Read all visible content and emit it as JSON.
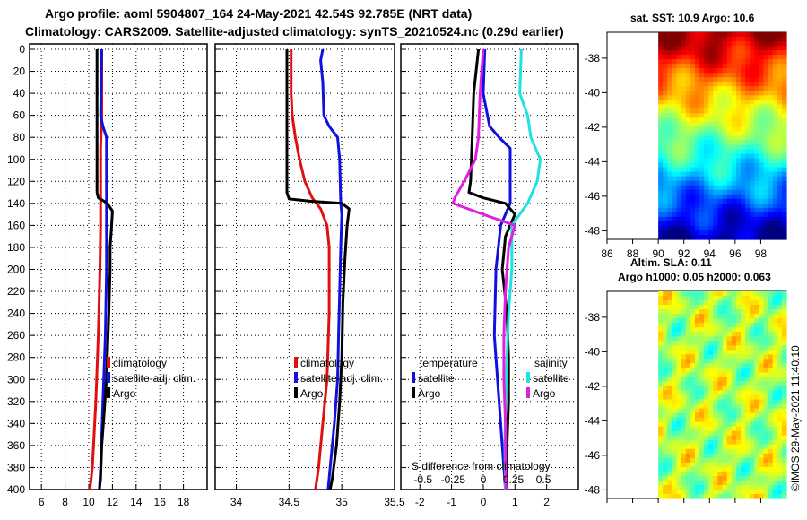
{
  "header": {
    "line1": "Argo profile: aoml 5904807_164 24-May-2021 42.54S 92.785E (NRT data)",
    "line2": "Climatology: CARS2009. Satellite-adjusted climatology: synTS_20210524.nc (0.29d earlier)"
  },
  "depth_ticks": [
    0,
    20,
    40,
    60,
    80,
    100,
    120,
    140,
    160,
    180,
    200,
    220,
    240,
    260,
    280,
    300,
    320,
    340,
    360,
    380,
    400
  ],
  "colors": {
    "climatology": "#e01010",
    "satellite": "#1010e0",
    "argo": "#000000",
    "sat_salinity": "#20e0e0",
    "argo_salinity": "#e020e0"
  },
  "chart_data": [
    {
      "type": "line",
      "name": "temperature",
      "xlim": [
        5,
        20
      ],
      "ylim": [
        0,
        400
      ],
      "x_ticks": [
        6,
        8,
        10,
        12,
        14,
        16,
        18
      ],
      "legend": [
        "climatology",
        "satellite-adj. clim.",
        "Argo"
      ],
      "series": [
        {
          "name": "climatology",
          "color": "#e01010",
          "points": [
            [
              11.1,
              0
            ],
            [
              11.1,
              60
            ],
            [
              11.0,
              90
            ],
            [
              11.0,
              140
            ],
            [
              11.0,
              160
            ],
            [
              10.95,
              200
            ],
            [
              10.8,
              260
            ],
            [
              10.6,
              320
            ],
            [
              10.3,
              380
            ],
            [
              10.1,
              400
            ]
          ]
        },
        {
          "name": "satellite-adj. clim.",
          "color": "#1010e0",
          "points": [
            [
              11.1,
              0
            ],
            [
              11.0,
              60
            ],
            [
              11.2,
              70
            ],
            [
              11.5,
              80
            ],
            [
              11.5,
              140
            ],
            [
              11.5,
              160
            ],
            [
              11.5,
              200
            ],
            [
              11.4,
              260
            ],
            [
              11.2,
              320
            ],
            [
              11.0,
              380
            ],
            [
              10.9,
              400
            ]
          ]
        },
        {
          "name": "Argo",
          "color": "#000000",
          "points": [
            [
              10.7,
              0
            ],
            [
              10.7,
              130
            ],
            [
              10.8,
              135
            ],
            [
              11.3,
              138
            ],
            [
              11.7,
              142
            ],
            [
              12.0,
              147
            ],
            [
              11.9,
              165
            ],
            [
              11.8,
              180
            ],
            [
              11.8,
              200
            ],
            [
              11.7,
              240
            ],
            [
              11.6,
              270
            ],
            [
              11.5,
              300
            ],
            [
              11.3,
              330
            ],
            [
              11.1,
              360
            ],
            [
              11.0,
              390
            ],
            [
              10.9,
              400
            ]
          ]
        }
      ]
    },
    {
      "type": "line",
      "name": "salinity",
      "xlim": [
        33.8,
        35.5
      ],
      "ylim": [
        0,
        400
      ],
      "x_ticks": [
        34,
        34.5,
        35,
        35.5
      ],
      "legend": [
        "climatology",
        "satellite-adj. clim.",
        "Argo"
      ],
      "series": [
        {
          "name": "climatology",
          "color": "#e01010",
          "points": [
            [
              34.52,
              0
            ],
            [
              34.52,
              40
            ],
            [
              34.53,
              60
            ],
            [
              34.56,
              80
            ],
            [
              34.6,
              100
            ],
            [
              34.65,
              120
            ],
            [
              34.72,
              135
            ],
            [
              34.8,
              145
            ],
            [
              34.86,
              160
            ],
            [
              34.88,
              180
            ],
            [
              34.88,
              240
            ],
            [
              34.86,
              300
            ],
            [
              34.82,
              340
            ],
            [
              34.78,
              380
            ],
            [
              34.75,
              400
            ]
          ]
        },
        {
          "name": "satellite-adj. clim.",
          "color": "#1010e0",
          "points": [
            [
              34.82,
              0
            ],
            [
              34.8,
              10
            ],
            [
              34.82,
              30
            ],
            [
              34.83,
              60
            ],
            [
              34.88,
              70
            ],
            [
              34.96,
              80
            ],
            [
              34.98,
              100
            ],
            [
              34.99,
              140
            ],
            [
              35.0,
              150
            ],
            [
              34.99,
              180
            ],
            [
              34.98,
              220
            ],
            [
              34.97,
              260
            ],
            [
              34.96,
              300
            ],
            [
              34.93,
              340
            ],
            [
              34.89,
              380
            ],
            [
              34.87,
              400
            ]
          ]
        },
        {
          "name": "Argo",
          "color": "#000000",
          "points": [
            [
              34.48,
              0
            ],
            [
              34.48,
              130
            ],
            [
              34.5,
              136
            ],
            [
              34.7,
              138
            ],
            [
              35.0,
              140
            ],
            [
              35.07,
              145
            ],
            [
              35.05,
              160
            ],
            [
              35.03,
              190
            ],
            [
              35.01,
              230
            ],
            [
              35.0,
              280
            ],
            [
              34.98,
              320
            ],
            [
              34.95,
              360
            ],
            [
              34.91,
              390
            ],
            [
              34.89,
              400
            ]
          ]
        }
      ]
    },
    {
      "type": "line",
      "name": "difference",
      "xlim": [
        -2.6,
        3.0
      ],
      "ylim": [
        0,
        400
      ],
      "x_ticks": [
        -2,
        -1,
        0,
        1,
        2
      ],
      "salinity_ticks": [
        "-0.5",
        "-0.25",
        "0",
        "0.25",
        "0.5"
      ],
      "salinity_tick_values": [
        -1.9,
        -0.95,
        0.0,
        0.95,
        1.9
      ],
      "legend_temperature_title": "temperature",
      "legend_salinity_title": "salinity",
      "legend_temperature": [
        "satellite",
        "Argo"
      ],
      "legend_salinity": [
        "satellite",
        "Argo"
      ],
      "xlabel": "S difference from climatology",
      "series": [
        {
          "name": "temperature satellite",
          "color": "#1010e0",
          "points": [
            [
              0.05,
              0
            ],
            [
              0.0,
              40
            ],
            [
              0.2,
              70
            ],
            [
              0.5,
              80
            ],
            [
              0.85,
              90
            ],
            [
              0.85,
              140
            ],
            [
              0.55,
              160
            ],
            [
              0.4,
              200
            ],
            [
              0.35,
              260
            ],
            [
              0.5,
              320
            ],
            [
              0.65,
              380
            ],
            [
              0.7,
              400
            ]
          ]
        },
        {
          "name": "temperature Argo",
          "color": "#000000",
          "points": [
            [
              -0.15,
              0
            ],
            [
              -0.3,
              40
            ],
            [
              -0.35,
              80
            ],
            [
              -0.4,
              120
            ],
            [
              -0.45,
              130
            ],
            [
              0.0,
              135
            ],
            [
              0.7,
              140
            ],
            [
              1.0,
              150
            ],
            [
              0.7,
              170
            ],
            [
              0.6,
              200
            ],
            [
              0.75,
              240
            ],
            [
              0.8,
              280
            ],
            [
              0.8,
              320
            ],
            [
              0.75,
              360
            ],
            [
              0.75,
              400
            ]
          ]
        },
        {
          "name": "salinity satellite",
          "color": "#20e0e0",
          "points": [
            [
              1.2,
              0
            ],
            [
              1.15,
              40
            ],
            [
              1.4,
              60
            ],
            [
              1.5,
              80
            ],
            [
              1.8,
              100
            ],
            [
              1.7,
              120
            ],
            [
              1.4,
              140
            ],
            [
              0.9,
              160
            ],
            [
              0.9,
              200
            ],
            [
              0.8,
              240
            ],
            [
              0.75,
              280
            ],
            [
              0.7,
              320
            ],
            [
              0.68,
              360
            ],
            [
              0.7,
              400
            ]
          ]
        },
        {
          "name": "salinity Argo",
          "color": "#e020e0",
          "points": [
            [
              0.0,
              0
            ],
            [
              -0.1,
              40
            ],
            [
              -0.15,
              80
            ],
            [
              -0.25,
              100
            ],
            [
              -0.6,
              120
            ],
            [
              -0.9,
              135
            ],
            [
              -0.95,
              140
            ],
            [
              0.0,
              150
            ],
            [
              1.0,
              160
            ],
            [
              0.8,
              180
            ],
            [
              0.7,
              220
            ],
            [
              0.65,
              260
            ],
            [
              0.65,
              300
            ],
            [
              0.7,
              340
            ],
            [
              0.7,
              380
            ],
            [
              0.72,
              400
            ]
          ]
        }
      ]
    },
    {
      "type": "heatmap",
      "name": "sat. SST",
      "title": "sat. SST: 10.9 Argo: 10.6",
      "x_ticks": [
        86,
        88,
        90,
        92,
        94,
        96,
        98
      ],
      "lat_ticks": [
        -38,
        -40,
        -42,
        -44,
        -46,
        -48
      ],
      "xlim": [
        86,
        100
      ],
      "ylim": [
        -48.5,
        -36.5
      ],
      "data_lon_start": 90
    },
    {
      "type": "heatmap",
      "name": "altim. SLA",
      "title1": "Altim. SLA: 0.11",
      "title2": "Argo h1000: 0.05 h2000: 0.063",
      "lat_ticks": [
        -38,
        -40,
        -42,
        -44,
        -46,
        -48
      ],
      "xlim": [
        86,
        100
      ],
      "ylim": [
        -48.5,
        -36.5
      ],
      "data_lon_start": 90
    }
  ],
  "credit": "©IMOS 29-May-2021 11:40:10"
}
